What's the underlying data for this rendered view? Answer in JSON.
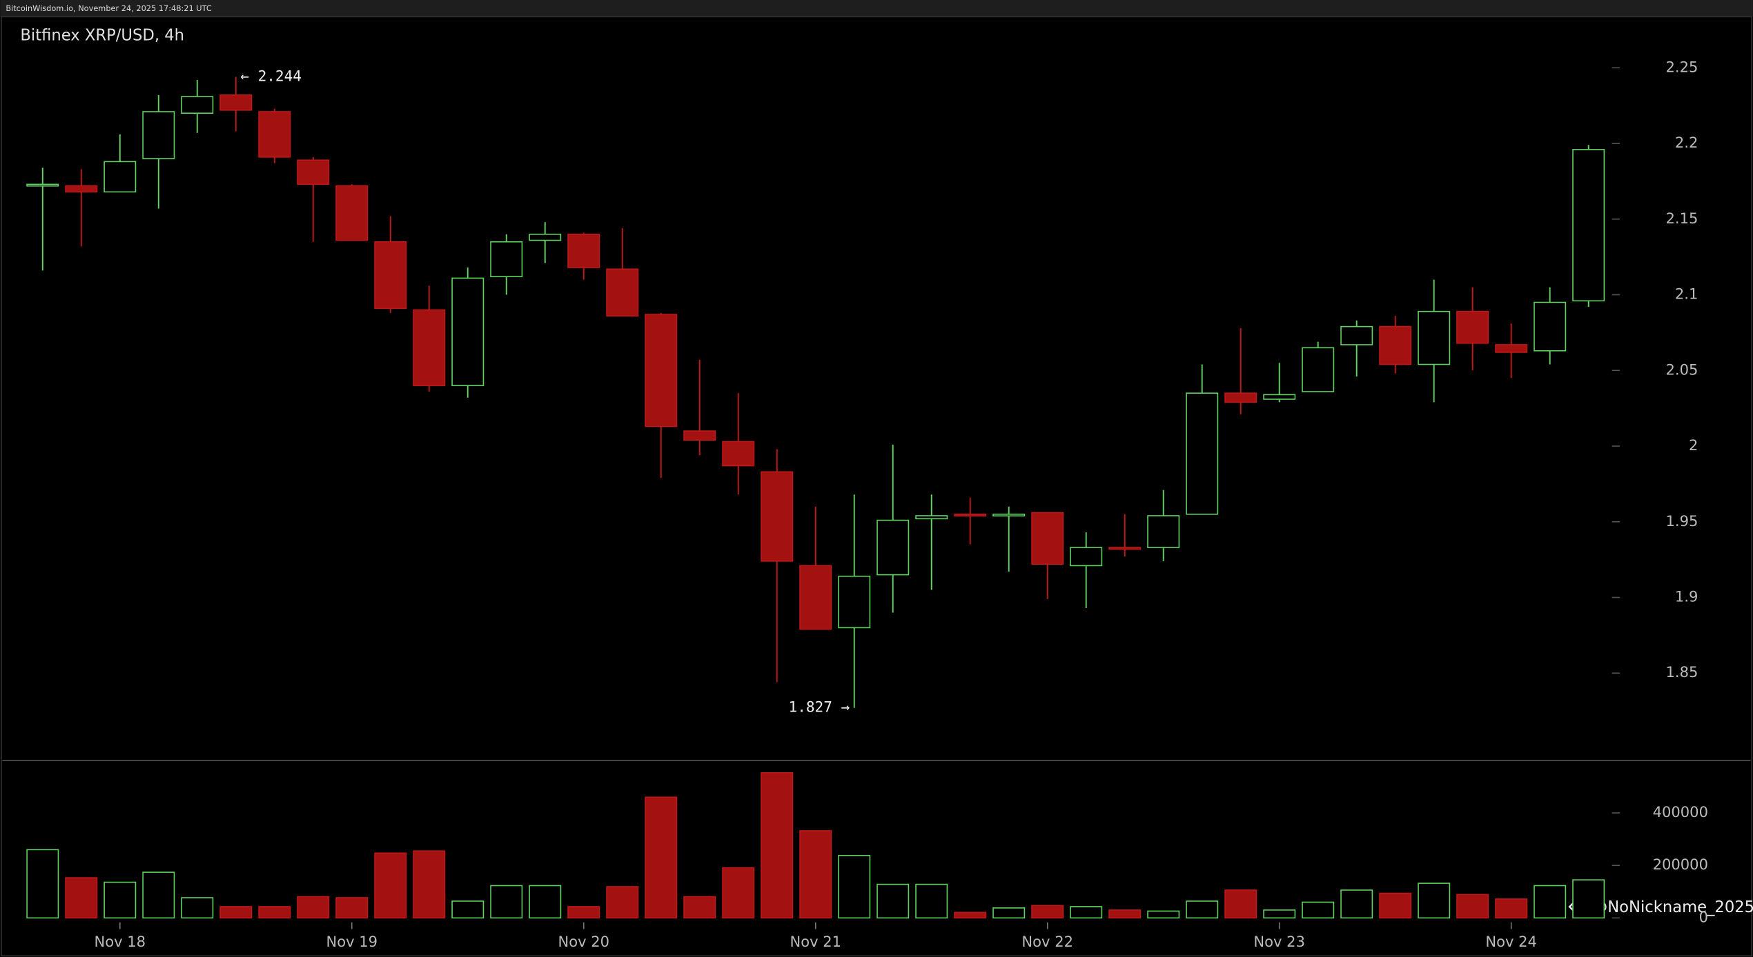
{
  "chart_data": {
    "type": "candlestick",
    "header": "BitcoinWisdom.io, November 24, 2025 17:48:21 UTC",
    "title": "Bitfinex XRP/USD, 4h",
    "watermark": "@NoNickname_2025",
    "annotations": [
      "← 2.244",
      "1.827 →"
    ],
    "categories": [
      null,
      null,
      "Nov 18",
      null,
      null,
      null,
      null,
      null,
      "Nov 19",
      null,
      null,
      null,
      null,
      null,
      "Nov 20",
      null,
      null,
      null,
      null,
      null,
      "Nov 21",
      null,
      null,
      null,
      null,
      null,
      "Nov 22",
      null,
      null,
      null,
      null,
      null,
      "Nov 23",
      null,
      null,
      null,
      null,
      null,
      "Nov 24",
      null,
      null
    ],
    "open": [
      2.172,
      2.172,
      2.168,
      2.19,
      2.22,
      2.232,
      2.221,
      2.189,
      2.172,
      2.135,
      2.09,
      2.04,
      2.112,
      2.136,
      2.14,
      2.117,
      2.087,
      2.01,
      2.003,
      1.983,
      1.921,
      1.88,
      1.915,
      1.952,
      1.955,
      1.954,
      1.956,
      1.921,
      1.933,
      1.933,
      1.955,
      2.035,
      2.031,
      2.036,
      2.067,
      2.079,
      2.054,
      2.089,
      2.067,
      2.063,
      2.096
    ],
    "high": [
      2.184,
      2.183,
      2.206,
      2.232,
      2.242,
      2.244,
      2.223,
      2.191,
      2.173,
      2.152,
      2.106,
      2.118,
      2.14,
      2.148,
      2.141,
      2.144,
      2.088,
      2.057,
      2.035,
      1.998,
      1.96,
      1.968,
      2.001,
      1.968,
      1.966,
      1.96,
      1.956,
      1.943,
      1.955,
      1.971,
      2.054,
      2.078,
      2.055,
      2.069,
      2.083,
      2.086,
      2.11,
      2.105,
      2.081,
      2.105,
      2.199
    ],
    "low": [
      2.116,
      2.132,
      2.168,
      2.157,
      2.207,
      2.208,
      2.187,
      2.135,
      2.136,
      2.088,
      2.036,
      2.032,
      2.1,
      2.121,
      2.11,
      2.086,
      1.979,
      1.994,
      1.968,
      1.844,
      1.879,
      1.827,
      1.89,
      1.905,
      1.935,
      1.917,
      1.899,
      1.893,
      1.927,
      1.924,
      1.955,
      2.021,
      2.029,
      2.036,
      2.046,
      2.048,
      2.029,
      2.05,
      2.045,
      2.054,
      2.092
    ],
    "close": [
      2.173,
      2.168,
      2.188,
      2.221,
      2.231,
      2.222,
      2.191,
      2.173,
      2.136,
      2.091,
      2.04,
      2.111,
      2.135,
      2.14,
      2.118,
      2.086,
      2.013,
      2.004,
      1.987,
      1.924,
      1.879,
      1.914,
      1.951,
      1.954,
      1.954,
      1.955,
      1.922,
      1.933,
      1.932,
      1.954,
      2.035,
      2.029,
      2.034,
      2.065,
      2.079,
      2.054,
      2.089,
      2.068,
      2.062,
      2.095,
      2.196
    ],
    "volume": [
      260000,
      153000,
      136000,
      174000,
      77000,
      43000,
      43000,
      81000,
      77000,
      247000,
      255000,
      64000,
      123000,
      123000,
      43000,
      119000,
      460000,
      81000,
      191000,
      553000,
      332000,
      238000,
      128000,
      128000,
      21000,
      38000,
      47000,
      43000,
      30000,
      26000,
      64000,
      106000,
      30000,
      60000,
      106000,
      94000,
      132000,
      89000,
      72000,
      123000,
      145000
    ],
    "up_color": "#5fd35f",
    "down_color": "#a31111",
    "ylim": [
      1.793,
      2.283
    ],
    "yticks": [
      1.85,
      1.9,
      1.95,
      2,
      2.05,
      2.1,
      2.15,
      2.2,
      2.25
    ],
    "volume_ylim": [
      -42550,
      595700
    ],
    "volume_ticks": [
      0,
      200000,
      400000
    ],
    "grid": false
  }
}
